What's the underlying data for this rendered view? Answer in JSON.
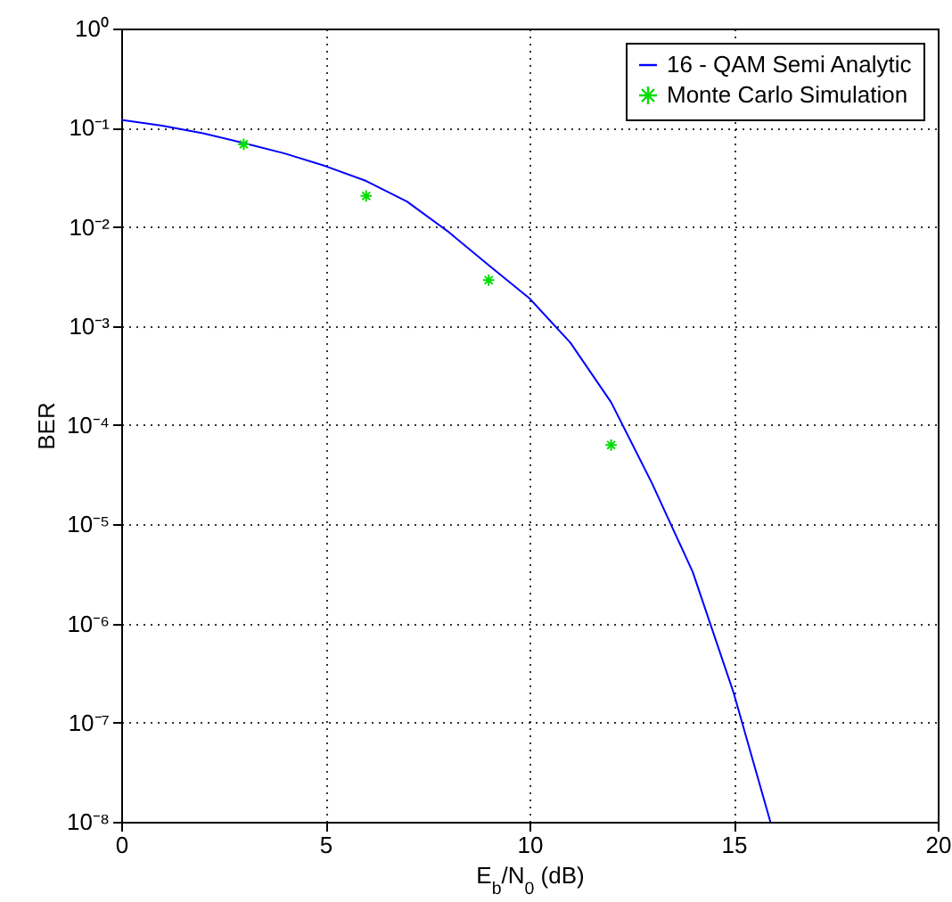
{
  "chart_data": {
    "type": "line",
    "xlabel": "E$_{b}$/N$_{0}$ (dB)",
    "ylabel": "BER",
    "log": "y",
    "grid": true,
    "legend": "top right",
    "xlim": [
      0,
      20
    ],
    "xticks": [
      0,
      5,
      10,
      15,
      20
    ],
    "ylim": [
      1e-08,
      1
    ],
    "yticks": [
      {
        "value": 1e-08,
        "label": "10⁻⁸"
      },
      {
        "value": 1e-07,
        "label": "10⁻⁷"
      },
      {
        "value": 1e-06,
        "label": "10⁻⁶"
      },
      {
        "value": 1e-05,
        "label": "10⁻⁵"
      },
      {
        "value": 0.0001,
        "label": "10⁻⁴"
      },
      {
        "value": 0.001,
        "label": "10⁻³"
      },
      {
        "value": 0.01,
        "label": "10⁻²"
      },
      {
        "value": 0.1,
        "label": "10⁻¹"
      },
      {
        "value": 1,
        "label": "10⁰"
      }
    ],
    "series": [
      {
        "name": "16 - QAM Semi Analytic",
        "color": "#0000ff",
        "marker": "none",
        "x": [
          0,
          1,
          2,
          3,
          4,
          5,
          6,
          7,
          8,
          9,
          10,
          11,
          12,
          13,
          14,
          15,
          15.9
        ],
        "values": [
          0.12,
          0.105,
          0.088,
          0.07,
          0.055,
          0.041,
          0.029,
          0.018,
          0.009,
          0.0041,
          0.0019,
          0.00068,
          0.00017,
          2.6e-05,
          3.3e-06,
          2e-07,
          1e-08
        ]
      },
      {
        "name": "Monte Carlo Simulation",
        "type": "scatter",
        "color": "#00dd00",
        "marker": "cross",
        "x": [
          3,
          6,
          9,
          12
        ],
        "values": [
          0.068,
          0.0205,
          0.0029,
          6.3e-05
        ]
      }
    ]
  }
}
